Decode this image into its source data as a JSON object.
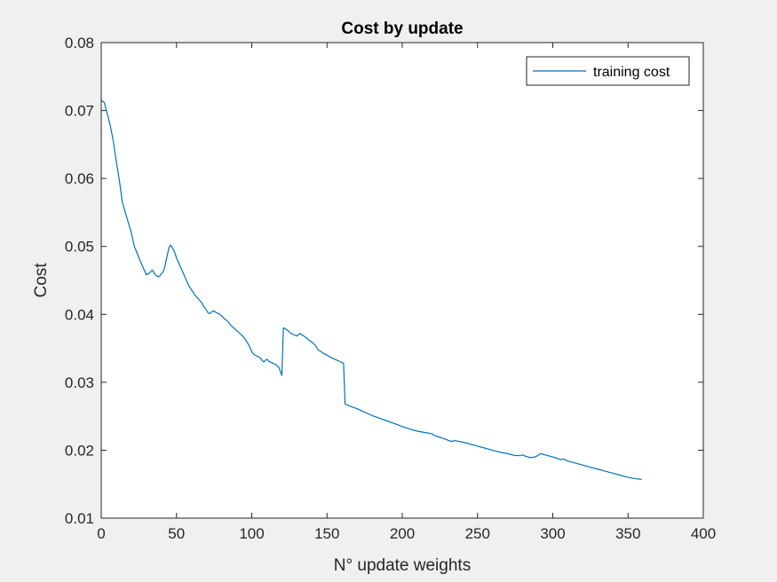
{
  "chart_data": {
    "type": "line",
    "title": "Cost by update",
    "xlabel": "N° update weights",
    "ylabel": "Cost",
    "xlim": [
      0,
      400
    ],
    "ylim": [
      0.01,
      0.08
    ],
    "xticks": [
      0,
      50,
      100,
      150,
      200,
      250,
      300,
      350,
      400
    ],
    "yticks": [
      0.01,
      0.02,
      0.03,
      0.04,
      0.05,
      0.06,
      0.07,
      0.08
    ],
    "xtick_labels": [
      "0",
      "50",
      "100",
      "150",
      "200",
      "250",
      "300",
      "350",
      "400"
    ],
    "ytick_labels": [
      "0.01",
      "0.02",
      "0.03",
      "0.04",
      "0.05",
      "0.06",
      "0.07",
      "0.08"
    ],
    "grid": false,
    "legend_position": "top-right",
    "series": [
      {
        "name": "training cost",
        "color": "#0072bd",
        "x": [
          0,
          2,
          4,
          6,
          8,
          10,
          12,
          14,
          16,
          18,
          20,
          21,
          22,
          24,
          26,
          28,
          30,
          32,
          34,
          36,
          38,
          39,
          40,
          41,
          42,
          43,
          44,
          45,
          46,
          47,
          48,
          49,
          50,
          52,
          54,
          56,
          58,
          60,
          62,
          64,
          66,
          67,
          68,
          70,
          71,
          72,
          73,
          74,
          75,
          76,
          78,
          80,
          82,
          84,
          86,
          88,
          90,
          92,
          94,
          96,
          98,
          100,
          101,
          102,
          104,
          105,
          106,
          107,
          108,
          110,
          112,
          114,
          116,
          118,
          120,
          121,
          122,
          124,
          126,
          128,
          130,
          132,
          134,
          136,
          138,
          140,
          142,
          144,
          146,
          148,
          150,
          152,
          154,
          156,
          158,
          160,
          161,
          162,
          165,
          170,
          175,
          180,
          185,
          190,
          195,
          200,
          205,
          210,
          215,
          220,
          221,
          225,
          230,
          232,
          235,
          240,
          245,
          250,
          255,
          260,
          265,
          270,
          275,
          278,
          280,
          282,
          285,
          288,
          290,
          292,
          295,
          300,
          303,
          305,
          307,
          310,
          315,
          320,
          325,
          330,
          335,
          340,
          345,
          350,
          355,
          359
        ],
        "values": [
          0.0715,
          0.0712,
          0.0695,
          0.0678,
          0.0655,
          0.0625,
          0.0598,
          0.0565,
          0.055,
          0.0535,
          0.052,
          0.051,
          0.05,
          0.0489,
          0.0478,
          0.0468,
          0.0458,
          0.0461,
          0.0465,
          0.0458,
          0.0455,
          0.0457,
          0.046,
          0.0462,
          0.0468,
          0.0478,
          0.0488,
          0.0498,
          0.0502,
          0.0499,
          0.0495,
          0.049,
          0.0483,
          0.0473,
          0.0463,
          0.0453,
          0.0443,
          0.0436,
          0.0429,
          0.0424,
          0.0419,
          0.0416,
          0.0412,
          0.0406,
          0.0402,
          0.0401,
          0.0403,
          0.0404,
          0.0405,
          0.0403,
          0.0401,
          0.0398,
          0.0393,
          0.039,
          0.0384,
          0.038,
          0.0376,
          0.0372,
          0.0368,
          0.0362,
          0.0355,
          0.0345,
          0.0342,
          0.034,
          0.0338,
          0.0337,
          0.0335,
          0.0332,
          0.033,
          0.0334,
          0.033,
          0.0328,
          0.0326,
          0.0322,
          0.031,
          0.038,
          0.0379,
          0.0376,
          0.0372,
          0.037,
          0.0368,
          0.0372,
          0.0369,
          0.0366,
          0.0362,
          0.0359,
          0.0355,
          0.0348,
          0.0345,
          0.0342,
          0.034,
          0.0337,
          0.0335,
          0.0333,
          0.0331,
          0.0329,
          0.0328,
          0.0268,
          0.0265,
          0.0261,
          0.0256,
          0.0251,
          0.0247,
          0.0243,
          0.0239,
          0.0235,
          0.0231,
          0.0228,
          0.0226,
          0.0224,
          0.0222,
          0.0219,
          0.0215,
          0.0213,
          0.0214,
          0.0212,
          0.0209,
          0.0206,
          0.0203,
          0.02,
          0.0197,
          0.0195,
          0.0192,
          0.0192,
          0.0193,
          0.0191,
          0.0189,
          0.019,
          0.0192,
          0.0195,
          0.0193,
          0.019,
          0.0188,
          0.0186,
          0.0187,
          0.0184,
          0.0181,
          0.0178,
          0.0175,
          0.0172,
          0.0169,
          0.0166,
          0.0163,
          0.016,
          0.0158,
          0.0157
        ]
      }
    ]
  }
}
